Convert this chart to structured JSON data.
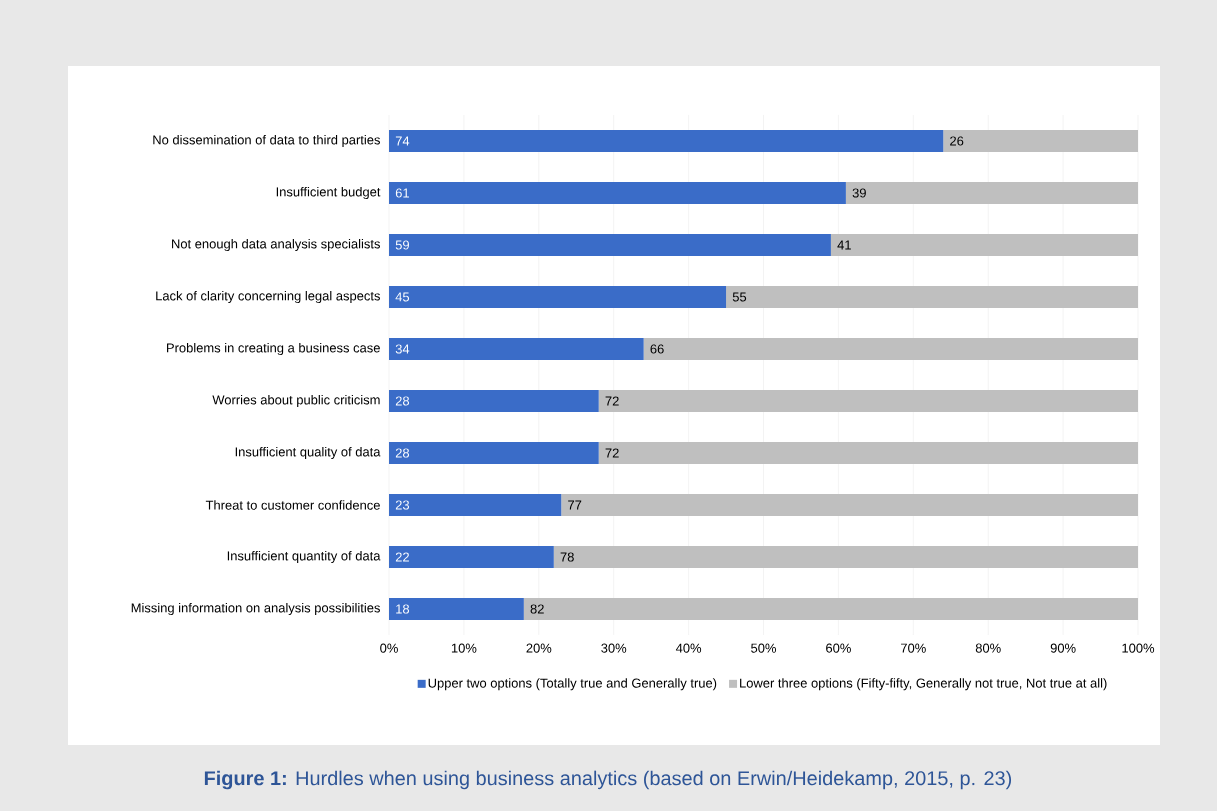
{
  "chart_data": {
    "type": "bar",
    "orientation": "horizontal",
    "stacked": true,
    "categories": [
      "No dissemination of data to third parties",
      "Insufficient budget",
      "Not enough data analysis specialists",
      "Lack of clarity concerning legal aspects",
      "Problems in creating a business case",
      "Worries about public criticism",
      "Insufficient quality of data",
      "Threat to customer confidence",
      "Insufficient quantity of data",
      "Missing information on analysis possibilities"
    ],
    "series": [
      {
        "name": "Upper two options (Totally true and Generally true)",
        "color": "#3a6cc8",
        "values": [
          74,
          61,
          59,
          45,
          34,
          28,
          28,
          23,
          22,
          18
        ]
      },
      {
        "name": "Lower three options (Fifty-fifty, Generally not true, Not true at all)",
        "color": "#bfbfbf",
        "values": [
          26,
          39,
          41,
          55,
          66,
          72,
          72,
          77,
          78,
          82
        ]
      }
    ],
    "xlim": [
      0,
      100
    ],
    "xticks": [
      {
        "value": 0,
        "label": "0%"
      },
      {
        "value": 10,
        "label": "10%"
      },
      {
        "value": 20,
        "label": "20%"
      },
      {
        "value": 30,
        "label": "30%"
      },
      {
        "value": 40,
        "label": "40%"
      },
      {
        "value": 50,
        "label": "50%"
      },
      {
        "value": 60,
        "label": "60%"
      },
      {
        "value": 70,
        "label": "70%"
      },
      {
        "value": 80,
        "label": "80%"
      },
      {
        "value": 90,
        "label": "90%"
      },
      {
        "value": 100,
        "label": "100%"
      }
    ],
    "grid": "x",
    "legend": "bottom",
    "data_labels": true,
    "annotations": [
      "**Figure 1:** Hurdles when using business analytics (based on Erwin/Heidekamp, 2015, p. 23)"
    ]
  }
}
